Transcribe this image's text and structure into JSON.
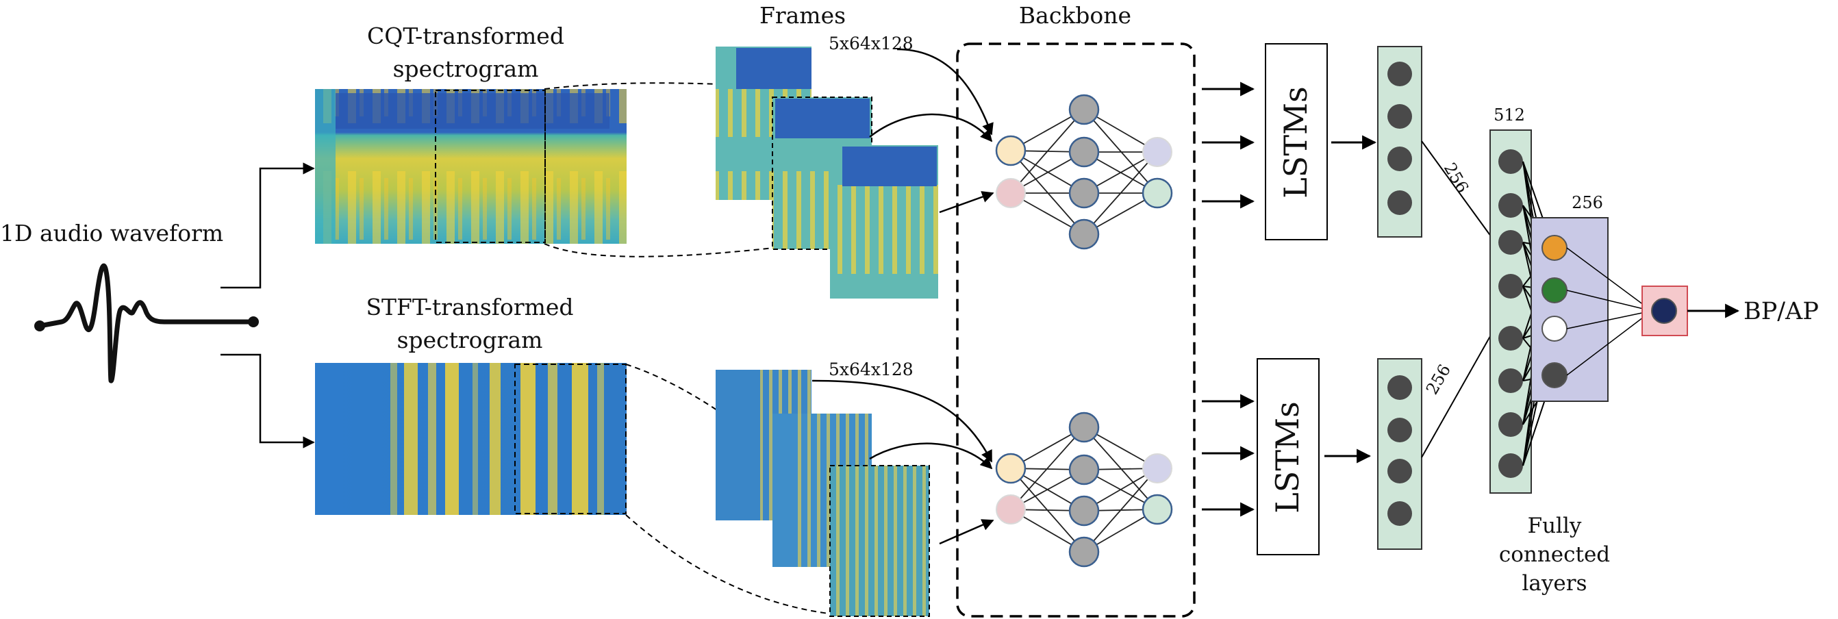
{
  "labels": {
    "waveform": "1D audio waveform",
    "cqt_line1": "CQT-transformed",
    "cqt_line2": "spectrogram",
    "stft_line1": "STFT-transformed",
    "stft_line2": "spectrogram",
    "frames": "Frames",
    "frames_dims_top": "5x64x128",
    "frames_dims_bottom": "5x64x128",
    "backbone": "Backbone",
    "lstm_top": "LSTMs",
    "lstm_bottom": "LSTMs",
    "dim_256_top": "256",
    "dim_256_bottom": "256",
    "dim_512": "512",
    "dim_256_fc": "256",
    "fc_line1": "Fully",
    "fc_line2": "connected",
    "fc_line3": "layers",
    "output": "BP/AP"
  },
  "colors": {
    "spec_blue": "#2f6fbf",
    "spec_teal": "#3fb2b0",
    "spec_yellow": "#f2d43a",
    "node_gray": "#a6a6a6",
    "node_dark": "#4a4a4a",
    "feature_box": "#cfe6d8",
    "fc_box": "#c9c9e6",
    "out_box": "#f5c9cc",
    "out_node": "#1b2a5e",
    "fc_orange": "#e89a2e",
    "fc_green": "#2e7d32",
    "input_cream": "#fbe8c2",
    "input_pink": "#ecc8cc",
    "output_lavender": "#d3d3ea",
    "output_mint": "#cfe6d8"
  }
}
